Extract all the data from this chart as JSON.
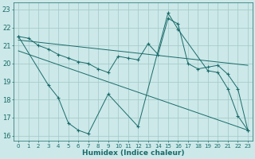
{
  "xlabel": "Humidex (Indice chaleur)",
  "xlim": [
    -0.5,
    23.5
  ],
  "ylim": [
    15.7,
    23.4
  ],
  "xticks": [
    0,
    1,
    2,
    3,
    4,
    5,
    6,
    7,
    8,
    9,
    10,
    11,
    12,
    13,
    14,
    15,
    16,
    17,
    18,
    19,
    20,
    21,
    22,
    23
  ],
  "yticks": [
    16,
    17,
    18,
    19,
    20,
    21,
    22,
    23
  ],
  "bg_color": "#cce8e8",
  "grid_color": "#a0c8c8",
  "line_color": "#1a6b6b",
  "upper_zigzag_x": [
    0,
    1,
    2,
    3,
    4,
    5,
    6,
    7,
    8,
    9,
    10,
    11,
    12,
    13,
    14,
    15,
    16,
    17,
    18,
    19,
    20,
    21,
    22,
    23
  ],
  "upper_zigzag_y": [
    21.5,
    21.4,
    21.0,
    20.8,
    20.5,
    20.3,
    20.1,
    20.0,
    19.7,
    19.5,
    20.4,
    20.3,
    20.2,
    21.1,
    20.5,
    22.5,
    22.2,
    20.0,
    19.7,
    19.8,
    19.9,
    19.4,
    18.6,
    16.3
  ],
  "trend1_x": [
    0,
    23
  ],
  "trend1_y": [
    21.3,
    19.9
  ],
  "trend2_x": [
    0,
    23
  ],
  "trend2_y": [
    20.7,
    16.3
  ],
  "lower_zigzag_x": [
    0,
    3,
    4,
    5,
    6,
    7,
    9,
    12,
    15,
    16,
    19,
    20,
    21,
    22,
    23
  ],
  "lower_zigzag_y": [
    21.5,
    18.8,
    18.1,
    16.7,
    16.3,
    16.1,
    18.3,
    16.5,
    22.8,
    21.9,
    19.6,
    19.5,
    18.6,
    17.1,
    16.3
  ]
}
